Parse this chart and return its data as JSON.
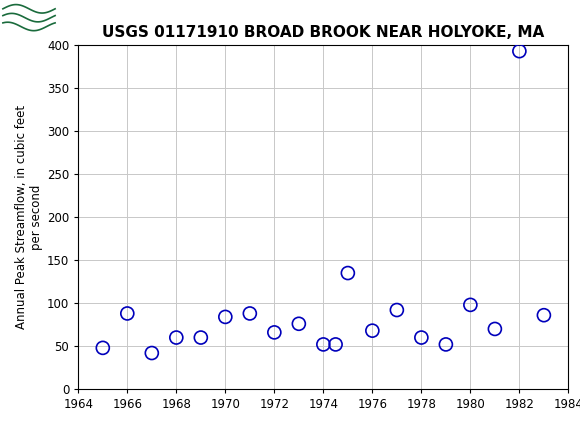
{
  "title": "USGS 01171910 BROAD BROOK NEAR HOLYOKE, MA",
  "ylabel_line1": "Annual Peak Streamflow, in cubic feet",
  "ylabel_line2": "per second",
  "years": [
    1965,
    1966,
    1967,
    1968,
    1969,
    1970,
    1971,
    1972,
    1973,
    1974,
    1974.5,
    1975,
    1976,
    1977,
    1978,
    1979,
    1980,
    1981,
    1982,
    1983
  ],
  "values": [
    48,
    88,
    42,
    60,
    60,
    84,
    88,
    66,
    76,
    52,
    52,
    135,
    68,
    92,
    60,
    52,
    98,
    70,
    393,
    86
  ],
  "xlim": [
    1964,
    1984
  ],
  "ylim": [
    0,
    400
  ],
  "xticks": [
    1964,
    1966,
    1968,
    1970,
    1972,
    1974,
    1976,
    1978,
    1980,
    1982,
    1984
  ],
  "yticks": [
    0,
    50,
    100,
    150,
    200,
    250,
    300,
    350,
    400
  ],
  "marker_color": "#0000bb",
  "marker_size": 5,
  "marker_linewidth": 1.2,
  "grid_color": "#c8c8c8",
  "background_color": "#ffffff",
  "header_bg_color": "#1a6b3c",
  "header_text_color": "#ffffff",
  "title_fontsize": 11,
  "axis_label_fontsize": 8.5,
  "tick_fontsize": 8.5
}
